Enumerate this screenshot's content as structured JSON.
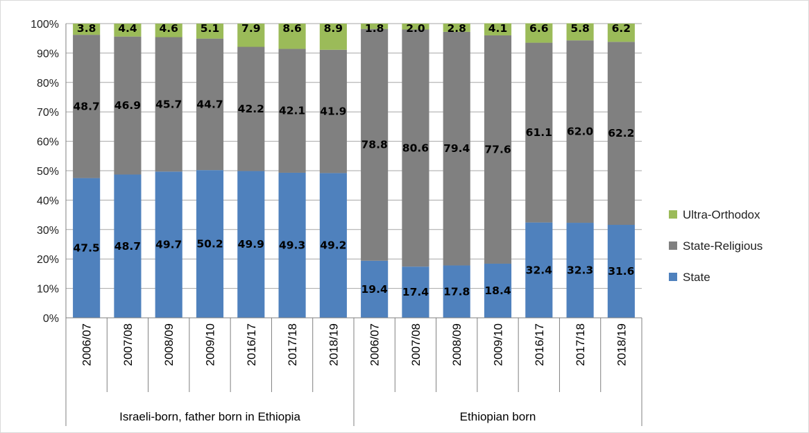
{
  "chart_data": {
    "type": "bar",
    "stacked": true,
    "percent": true,
    "groups": [
      {
        "label": "Israeli-born, father born in Ethiopia",
        "categories": [
          "2006/07",
          "2007/08",
          "2008/09",
          "2009/10",
          "2016/17",
          "2017/18",
          "2018/19"
        ]
      },
      {
        "label": "Ethiopian born",
        "categories": [
          "2006/07",
          "2007/08",
          "2008/09",
          "2009/10",
          "2016/17",
          "2017/18",
          "2018/19"
        ]
      }
    ],
    "categories": [
      "2006/07",
      "2007/08",
      "2008/09",
      "2009/10",
      "2016/17",
      "2017/18",
      "2018/19",
      "2006/07",
      "2007/08",
      "2008/09",
      "2009/10",
      "2016/17",
      "2017/18",
      "2018/19"
    ],
    "series": [
      {
        "name": "State",
        "color": "#4f81bd",
        "values": [
          47.5,
          48.7,
          49.7,
          50.2,
          49.9,
          49.3,
          49.2,
          19.4,
          17.4,
          17.8,
          18.4,
          32.4,
          32.3,
          31.6
        ]
      },
      {
        "name": "State-Religious",
        "color": "#808080",
        "values": [
          48.7,
          46.9,
          45.7,
          44.7,
          42.2,
          42.1,
          41.9,
          78.8,
          80.6,
          79.4,
          77.6,
          61.1,
          62.0,
          62.2
        ]
      },
      {
        "name": "Ultra-Orthodox",
        "color": "#9bbb59",
        "values": [
          3.8,
          4.4,
          4.6,
          5.1,
          7.9,
          8.6,
          8.9,
          1.8,
          2.0,
          2.8,
          4.1,
          6.6,
          5.8,
          6.2
        ]
      }
    ],
    "value_labels": [
      [
        "47.5",
        "48.7",
        "49.7",
        "50.2",
        "49.9",
        "49.3",
        "49.2",
        "19.4",
        "17.4",
        "17.8",
        "18.4",
        "32.4",
        "32.3",
        "31.6"
      ],
      [
        "48.7",
        "46.9",
        "45.7",
        "44.7",
        "42.2",
        "42.1",
        "41.9",
        "78.8",
        "80.6",
        "79.4",
        "77.6",
        "61.1",
        "62.0",
        "62.2"
      ],
      [
        "3.8",
        "4.4",
        "4.6",
        "5.1",
        "7.9",
        "8.6",
        "8.9",
        "1.8",
        "2.0",
        "2.8",
        "4.1",
        "6.6",
        "5.8",
        "6.2"
      ]
    ],
    "yticks": [
      "0%",
      "10%",
      "20%",
      "30%",
      "40%",
      "50%",
      "60%",
      "70%",
      "80%",
      "90%",
      "100%"
    ],
    "ylim": [
      0,
      100
    ],
    "grid": true,
    "legend_position": "right",
    "legend_order": [
      "Ultra-Orthodox",
      "State-Religious",
      "State"
    ],
    "title": "",
    "xlabel": "",
    "ylabel": ""
  }
}
